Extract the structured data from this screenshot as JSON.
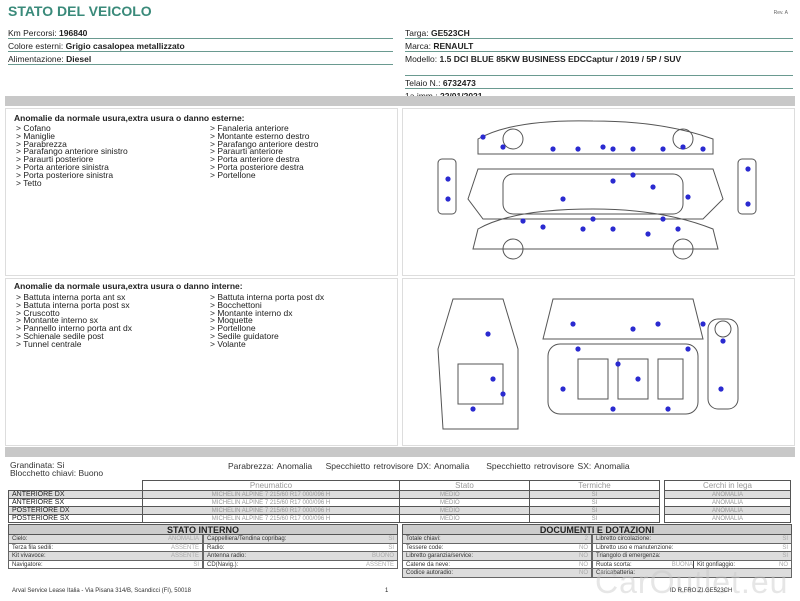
{
  "header": {
    "title": "STATO DEL VEICOLO",
    "rev": "Rev. A"
  },
  "vehicle_left": [
    {
      "label": "Km Percorsi:",
      "value": "196840"
    },
    {
      "label": "Colore esterni:",
      "value": "Grigio casalopea metallizzato"
    },
    {
      "label": "Alimentazione:",
      "value": "Diesel"
    }
  ],
  "vehicle_right": [
    {
      "label": "Targa:",
      "value": "GE523CH"
    },
    {
      "label": "Marca:",
      "value": "RENAULT"
    },
    {
      "label": "Modello:",
      "value": "1.5 DCI BLUE 85KW BUSINESS EDCCaptur / 2019 / 5P / SUV"
    },
    {
      "label": "Telaio N.:",
      "value": "6732473"
    },
    {
      "label": "1a imm.:",
      "value": "22/01/2021"
    }
  ],
  "exterior": {
    "heading": "Anomalie da normale usura,extra usura o danno esterne:",
    "col1": [
      "> Cofano",
      "> Maniglie",
      "> Parabrezza",
      "> Parafango anteriore sinistro",
      "> Paraurti posteriore",
      "> Porta anteriore sinistra",
      "> Porta posteriore sinistra",
      "> Tetto"
    ],
    "col2": [
      "> Fanaleria anteriore",
      "> Montante esterno destro",
      "> Parafango anteriore destro",
      "> Paraurti anteriore",
      "> Porta anteriore destra",
      "> Porta posteriore destra",
      "> Portellone"
    ]
  },
  "interior": {
    "heading": "Anomalie da normale usura,extra usura o danno interne:",
    "col1": [
      "> Battuta interna porta ant sx",
      "> Battuta interna porta post sx",
      "> Cruscotto",
      "> Montante interno sx",
      "> Pannello interno porta ant dx",
      "> Schienale sedile post",
      "> Tunnel centrale"
    ],
    "col2": [
      "> Battuta interna porta post dx",
      "> Bocchettoni",
      "> Montante interno dx",
      "> Moquette",
      "> Portellone",
      "> Sedile guidatore",
      "> Volante"
    ]
  },
  "status_line": {
    "grandinata": "Grandinata: Si",
    "blocchetto": "Blocchetto chiavi: Buono",
    "parabrezza": "Parabrezza: Anomalia",
    "spec_dx": "Specchietto retrovisore DX: Anomalia",
    "spec_sx": "Specchietto retrovisore SX: Anomalia"
  },
  "tires": {
    "headers": [
      "Pneumatico",
      "Stato",
      "Termiche"
    ],
    "cerchi_header": "Cerchi in lega",
    "rows": [
      {
        "pos": "ANTERIORE DX",
        "tire": "MICHELIN ALPINE 7 215/60 R17 000/096 H",
        "stato": "MEDIO",
        "termiche": "SI",
        "cerchi": "ANOMALIA"
      },
      {
        "pos": "ANTERIORE SX",
        "tire": "MICHELIN ALPINE 7 215/60 R17 000/096 H",
        "stato": "MEDIO",
        "termiche": "SI",
        "cerchi": "ANOMALIA"
      },
      {
        "pos": "POSTERIORE DX",
        "tire": "MICHELIN ALPINE 7 215/60 R17 000/096 H",
        "stato": "MEDIO",
        "termiche": "SI",
        "cerchi": "ANOMALIA"
      },
      {
        "pos": "POSTERIORE SX",
        "tire": "MICHELIN ALPINE 7 215/60 R17 000/096 H",
        "stato": "MEDIO",
        "termiche": "SI",
        "cerchi": "ANOMALIA"
      }
    ]
  },
  "stato_interno": {
    "title": "STATO INTERNO",
    "left": [
      {
        "k": "Cielo:",
        "v": "ANOMALIA"
      },
      {
        "k": "Terza fila sedili:",
        "v": "ASSENTE"
      },
      {
        "k": "Kit vivavoce:",
        "v": "ASSENTE"
      },
      {
        "k": "Navigatore:",
        "v": "SI"
      }
    ],
    "right": [
      {
        "k": "Cappelliera/Tendina copribag:",
        "v": "SI"
      },
      {
        "k": "Radio:",
        "v": "SI"
      },
      {
        "k": "Antenna radio:",
        "v": "BUONO"
      },
      {
        "k": "CD(Navig.):",
        "v": "ASSENTE"
      }
    ]
  },
  "documenti": {
    "title": "DOCUMENTI E DOTAZIONI",
    "left": [
      {
        "k": "Totale chiavi:",
        "v": "2"
      },
      {
        "k": "Tessere code:",
        "v": "NO"
      },
      {
        "k": "Libretto garanzia/service:",
        "v": "NO"
      },
      {
        "k": "Catene da neve:",
        "v": "NO"
      },
      {
        "k": "Codice autoradio:",
        "v": "NO"
      }
    ],
    "right": [
      {
        "k": "Libretto circolazione:",
        "v": "SI"
      },
      {
        "k": "Libretto uso e manutenzione:",
        "v": "SI"
      },
      {
        "k": "Triangolo di emergenza:",
        "v": "SI"
      },
      {
        "k": "Ruota scorta:",
        "v": "BUONA"
      },
      {
        "k": "Caricabatteria:",
        "v": ""
      }
    ],
    "kit": {
      "k": "Kit gonfiaggio:",
      "v": "NO"
    }
  },
  "footer": {
    "address": "Arval Service Lease Italia - Via Pisana 314/B, Scandicci (FI), 50018",
    "page": "1",
    "watermark": "CarOutlet.eu",
    "code": "ID R.FRO.ZI.GE523CH"
  },
  "colors": {
    "title": "#3a8a7a",
    "dot": "#2a2ad0",
    "bar": "#c8c8c8"
  }
}
